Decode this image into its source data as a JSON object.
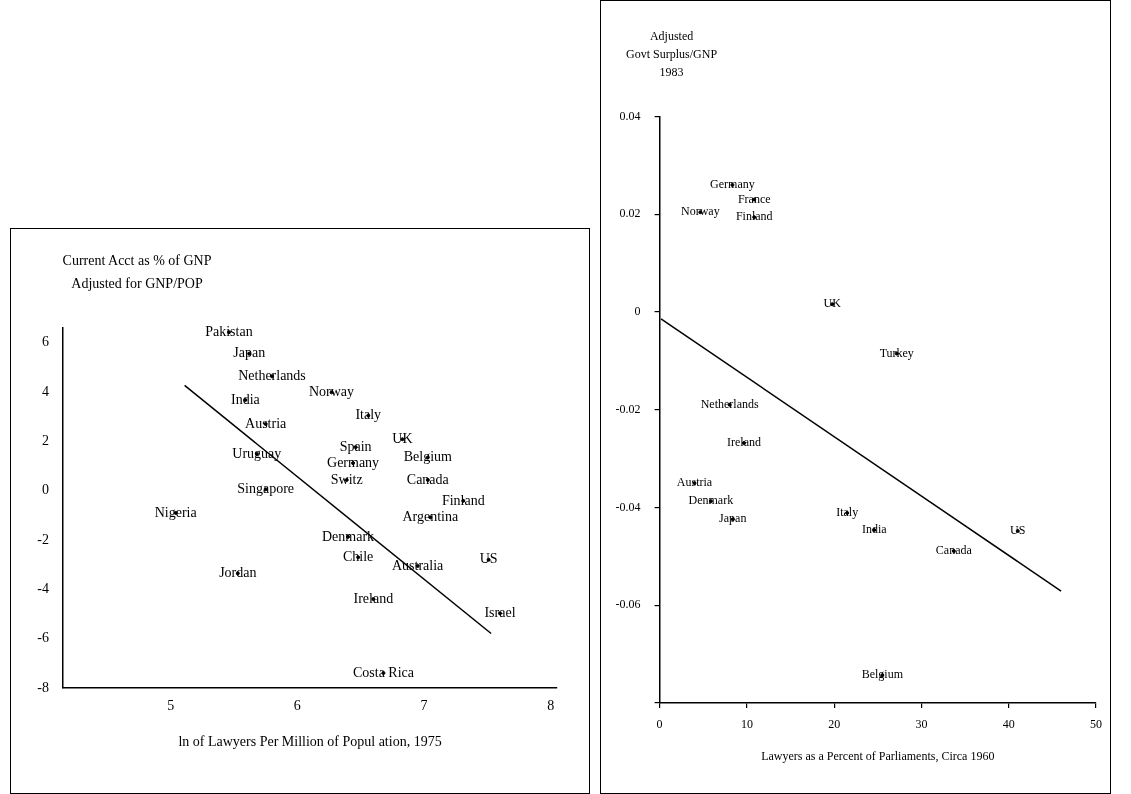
{
  "chart_data": [
    {
      "type": "scatter",
      "ylabel": "Current Acct as % of GNP\nAdjusted for GNP/POP",
      "xlabel": "ln of Lawyers Per Million of Popul ation, 1975",
      "xlim": [
        4.15,
        8.05
      ],
      "ylim": [
        -8,
        6.6
      ],
      "xticks": [
        5,
        6,
        7,
        8
      ],
      "yticks": [
        -8,
        -6,
        -4,
        -2,
        0,
        2,
        4,
        6
      ],
      "grid": false,
      "series": [
        {
          "type": "scatter",
          "marker": "circle",
          "color": "#000000",
          "x": [
            5.46,
            5.62,
            5.8,
            6.27,
            5.59,
            6.56,
            5.75,
            6.83,
            6.46,
            5.68,
            7.03,
            6.44,
            6.39,
            7.03,
            5.75,
            7.31,
            5.04,
            7.05,
            6.4,
            6.48,
            7.51,
            6.95,
            5.53,
            6.6,
            7.6,
            6.68
          ],
          "values": [
            6.43,
            5.56,
            4.64,
            3.99,
            3.68,
            3.05,
            2.71,
            2.09,
            1.77,
            1.49,
            1.35,
            1.12,
            0.44,
            0.44,
            0.06,
            -0.41,
            -0.9,
            -1.08,
            -1.87,
            -2.7,
            -2.8,
            -3.05,
            -3.35,
            -4.39,
            -4.97,
            -7.39
          ],
          "value_labels": [
            "Pakistan",
            "Japan",
            "Netherlands",
            "Norway",
            "India",
            "Italy",
            "Austria",
            "UK",
            "Spain",
            "Uruguay",
            "Belgium",
            "Germany",
            "Switz",
            "Canada",
            "Singapore",
            "Finland",
            "Nigeria",
            "Argentina",
            "Denmark",
            "Chile",
            "US",
            "Australia",
            "Jordan",
            "Ireland",
            "Israel",
            "Costa Rica"
          ]
        },
        {
          "type": "line",
          "color": "#000000",
          "x": [
            5.11,
            7.53
          ],
          "values": [
            4.27,
            -5.79
          ]
        }
      ]
    },
    {
      "type": "scatter",
      "ylabel": "Adjusted\nGovt Surplus/GNP\n1983",
      "xlabel": "Lawyers as a Percent of Parliaments, Circa 1960",
      "xlim": [
        0,
        50
      ],
      "ylim": [
        -0.08,
        0.04
      ],
      "xticks": [
        0,
        10,
        20,
        30,
        40,
        50
      ],
      "yticks": [
        {
          "value": -0.08,
          "label": null
        },
        -0.06,
        -0.04,
        -0.02,
        0,
        0.02,
        0.04
      ],
      "grid": false,
      "series": [
        {
          "type": "scatter",
          "marker": "circle",
          "color": "#000000",
          "x": [
            8.34,
            10.84,
            4.67,
            10.84,
            19.78,
            27.17,
            8.03,
            9.67,
            4.0,
            5.87,
            21.49,
            8.38,
            24.59,
            41.03,
            33.71,
            25.52
          ],
          "values": [
            0.026,
            0.023,
            0.0204,
            0.0194,
            0.0016,
            -0.0085,
            -0.019,
            -0.0268,
            -0.035,
            -0.0387,
            -0.0411,
            -0.0424,
            -0.0446,
            -0.0448,
            -0.0489,
            -0.0743
          ],
          "value_labels": [
            "Germany",
            "France",
            "Norway",
            "Finland",
            "UK",
            "Turkey",
            "Netherlands",
            "Ireland",
            "Austria",
            "Denmark",
            "Italy",
            "Japan",
            "India",
            "US",
            "Canada",
            "Belgium"
          ]
        },
        {
          "type": "line",
          "color": "#000000",
          "x": [
            0.16,
            46.0
          ],
          "values": [
            -0.0014,
            -0.0571
          ]
        }
      ]
    }
  ]
}
